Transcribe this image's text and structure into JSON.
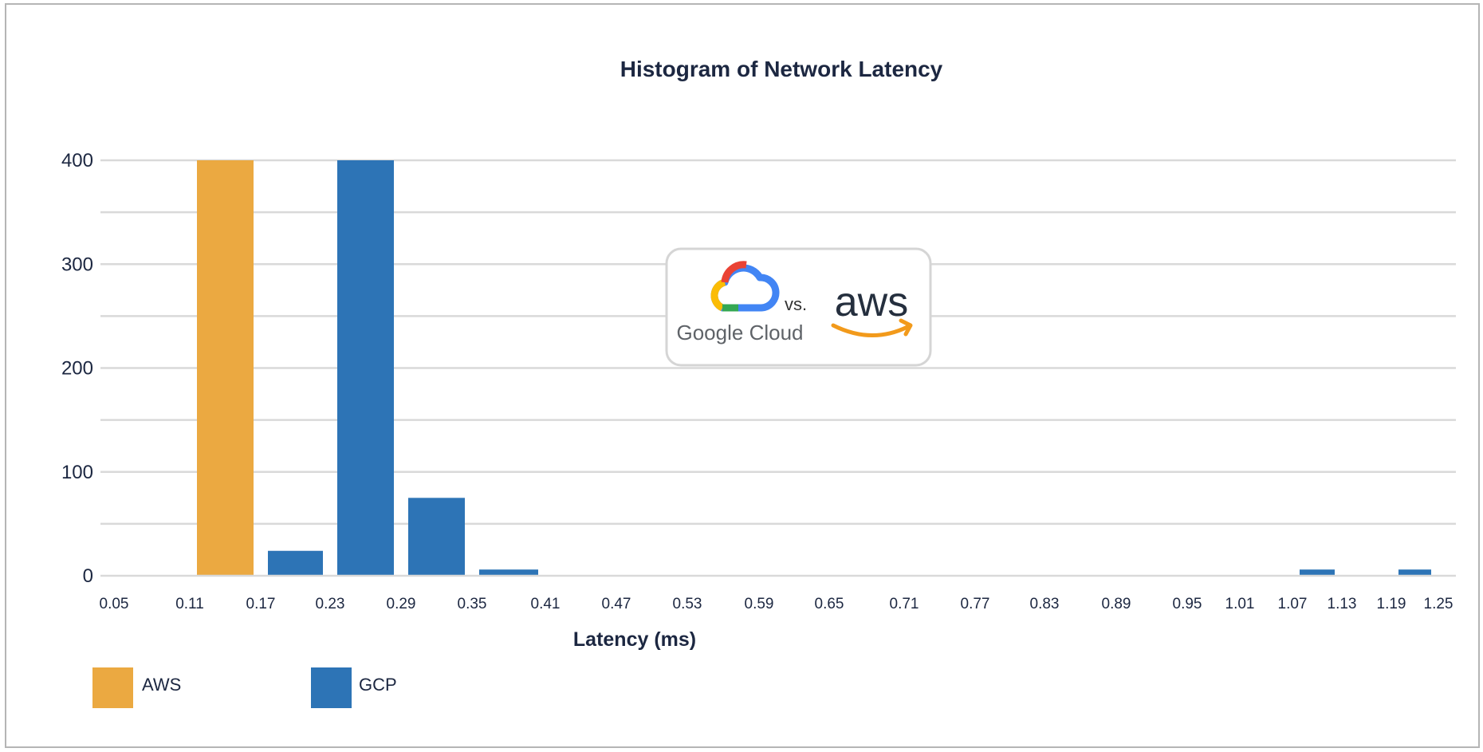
{
  "colors": {
    "aws": "#EBA941",
    "gcp": "#2D74B6",
    "grid": "#d9d9d9",
    "text": "#1c2741"
  },
  "chart_data": {
    "type": "bar",
    "title": "Histogram of Network Latency",
    "xlabel": "Latency (ms)",
    "ylabel": "",
    "ylim": [
      0,
      400
    ],
    "yticks": [
      "0",
      "100",
      "200",
      "300",
      "400"
    ],
    "xticks": [
      "0.05",
      "0.11",
      "0.17",
      "0.23",
      "0.29",
      "0.35",
      "0.41",
      "0.47",
      "0.53",
      "0.59",
      "0.65",
      "0.71",
      "0.77",
      "0.83",
      "0.89",
      "0.95",
      "1.01",
      "1.07",
      "1.13",
      "1.19",
      "1.25"
    ],
    "bin_edges": [
      0.05,
      0.11,
      0.17,
      0.23,
      0.29,
      0.35,
      0.41,
      0.47,
      0.53,
      0.59,
      0.65,
      0.71,
      0.77,
      0.83,
      0.89,
      0.95,
      1.01,
      1.07,
      1.13,
      1.19,
      1.25
    ],
    "series": [
      {
        "name": "AWS",
        "bins": [
          [
            0.11,
            0.17,
            400
          ]
        ]
      },
      {
        "name": "GCP",
        "bins": [
          [
            0.17,
            0.23,
            24
          ],
          [
            0.23,
            0.29,
            400
          ],
          [
            0.29,
            0.35,
            75
          ],
          [
            0.35,
            0.41,
            6
          ],
          [
            1.07,
            1.13,
            6
          ],
          [
            1.19,
            1.25,
            6
          ]
        ]
      }
    ],
    "legend_position": "bottom-left",
    "grid": true
  },
  "logo_badge": {
    "left_text": "Google Cloud",
    "vs_text": "vs.",
    "right_text": "aws"
  }
}
